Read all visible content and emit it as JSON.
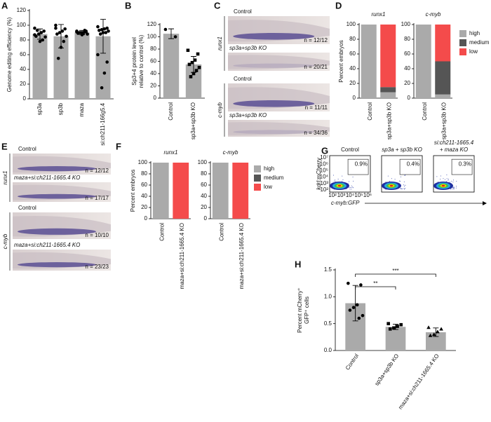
{
  "chart_data": [
    {
      "type": "bar",
      "panel": "A",
      "ylabel": "Genome editing efficiency (%)",
      "categories": [
        "sp3a",
        "sp3b",
        "maza",
        "si:ch211-166g5.4"
      ],
      "values": [
        88,
        85,
        90,
        85
      ],
      "errors": [
        7,
        16,
        3,
        23
      ],
      "points": [
        [
          96,
          92,
          90,
          88,
          85,
          84,
          80,
          78,
          93,
          87
        ],
        [
          100,
          95,
          92,
          90,
          88,
          85,
          78,
          70,
          55,
          96
        ],
        [
          92,
          91,
          90,
          90,
          89,
          88,
          93,
          87,
          90,
          91,
          92,
          89
        ],
        [
          98,
          96,
          95,
          94,
          93,
          92,
          90,
          90,
          88,
          60,
          50,
          35,
          15
        ]
      ],
      "color": "#aaaaaa",
      "ylim": [
        0,
        120
      ],
      "yticks": [
        0,
        20,
        40,
        60,
        80,
        100,
        120
      ]
    },
    {
      "type": "bar",
      "panel": "B",
      "ylabel": [
        "Sp3+4 protein level",
        "relative to control (%)"
      ],
      "categories": [
        "Control",
        "sp3a+sp3b KO"
      ],
      "values": [
        105,
        55
      ],
      "errors": [
        8,
        13
      ],
      "points": [
        [
          112,
          100
        ],
        [
          78,
          72,
          62,
          58,
          55,
          50,
          45,
          40,
          35
        ]
      ],
      "markers": [
        "circle",
        "square"
      ],
      "color": "#aaaaaa",
      "ylim": [
        0,
        120
      ],
      "yticks": [
        0,
        20,
        40,
        60,
        80,
        100,
        120
      ]
    },
    {
      "type": "stacked_bar",
      "panel": "D",
      "ylabel": "Percent embryos",
      "categories": [
        "Control",
        "sp3a+sp3b KO"
      ],
      "ylim": [
        0,
        100
      ],
      "yticks": [
        0,
        20,
        40,
        60,
        80,
        100
      ],
      "legend": "right",
      "series": [
        {
          "name": "high",
          "color": "#aaaaaa"
        },
        {
          "name": "medium",
          "color": "#555555"
        },
        {
          "name": "low",
          "color": "#f44b4b"
        }
      ],
      "subplots": [
        {
          "title": "runx1",
          "values": [
            [
              100,
              8
            ],
            [
              0,
              7
            ],
            [
              0,
              85
            ]
          ]
        },
        {
          "title": "c-myb",
          "values": [
            [
              100,
              5
            ],
            [
              0,
              45
            ],
            [
              0,
              50
            ]
          ]
        }
      ]
    },
    {
      "type": "stacked_bar",
      "panel": "F",
      "ylabel": "Percent embryos",
      "categories": [
        "Control",
        "maza+si:ch211-1665.4 KO"
      ],
      "ylim": [
        0,
        100
      ],
      "yticks": [
        0,
        20,
        40,
        60,
        80,
        100
      ],
      "legend": "right",
      "series": [
        {
          "name": "high",
          "color": "#aaaaaa"
        },
        {
          "name": "medium",
          "color": "#555555"
        },
        {
          "name": "low",
          "color": "#f44b4b"
        }
      ],
      "subplots": [
        {
          "title": "runx1",
          "values": [
            [
              100,
              0
            ],
            [
              0,
              0
            ],
            [
              0,
              100
            ]
          ]
        },
        {
          "title": "c-myb",
          "values": [
            [
              100,
              0
            ],
            [
              0,
              0
            ],
            [
              0,
              100
            ]
          ]
        }
      ]
    },
    {
      "type": "bar",
      "panel": "H",
      "ylabel": [
        "Percent mCherry⁺",
        "GFP⁺ cells"
      ],
      "categories": [
        "Control",
        "sp3a+sp3b KO",
        "maza+si:ch211-1665.4 KO"
      ],
      "values": [
        0.88,
        0.44,
        0.34
      ],
      "errors": [
        0.33,
        0.05,
        0.08
      ],
      "points": [
        [
          1.25,
          1.22,
          0.85,
          0.8,
          0.75,
          0.65,
          0.6
        ],
        [
          0.5,
          0.48,
          0.45,
          0.42,
          0.4
        ],
        [
          0.43,
          0.4,
          0.35,
          0.3,
          0.28
        ]
      ],
      "markers": [
        "circle",
        "square",
        "triangle"
      ],
      "significance": [
        "***",
        "**"
      ],
      "color": "#aaaaaa",
      "ylim": [
        0,
        1.5
      ],
      "yticks": [
        {
          "value": 0,
          "label": "0.0"
        },
        {
          "value": 0.5,
          "label": "0.5"
        },
        {
          "value": 1,
          "label": "1.0"
        },
        {
          "value": 1.5,
          "label": "1.5"
        }
      ]
    }
  ],
  "image_panels": [
    {
      "panel": "C",
      "rows": [
        {
          "label": "runx1",
          "images": [
            {
              "title": "Control",
              "count": "n = 12/12"
            },
            {
              "title": "sp3a+sp3b KO",
              "count": "n = 20/21"
            }
          ]
        },
        {
          "label": "c-myb",
          "images": [
            {
              "title": "Control",
              "count": "n = 11/11"
            },
            {
              "title": "sp3a+sp3b KO",
              "count": "n = 34/36"
            }
          ]
        }
      ]
    },
    {
      "panel": "E",
      "rows": [
        {
          "label": "runx1",
          "images": [
            {
              "title": "Control",
              "count": "n = 12/12"
            },
            {
              "title": "maza+si:ch211-1665.4 KO",
              "count": "n = 17/17"
            }
          ]
        },
        {
          "label": "c-myb",
          "images": [
            {
              "title": "Control",
              "count": "n = 10/10"
            },
            {
              "title": "maza+si:ch211-1665.4 KO",
              "count": "n = 23/23"
            }
          ]
        }
      ]
    }
  ],
  "flow_panel": {
    "panel": "G",
    "ylabel": "kdrl:mCherry",
    "xlabel": "c-myb:GFP",
    "yticks": [
      "10⁷",
      "10⁶",
      "10⁵",
      "10⁴",
      "10³",
      "10²"
    ],
    "xticks": [
      "10²",
      "10³",
      "10⁴",
      "10⁵",
      "10⁶"
    ],
    "plots": [
      {
        "title": [
          "Control"
        ],
        "gate": "0.9%"
      },
      {
        "title": [
          "sp3a + sp3b KO"
        ],
        "gate": "0.4%"
      },
      {
        "title": [
          "si:ch211-1665.4",
          "+ maza KO"
        ],
        "gate": "0.3%"
      }
    ]
  }
}
